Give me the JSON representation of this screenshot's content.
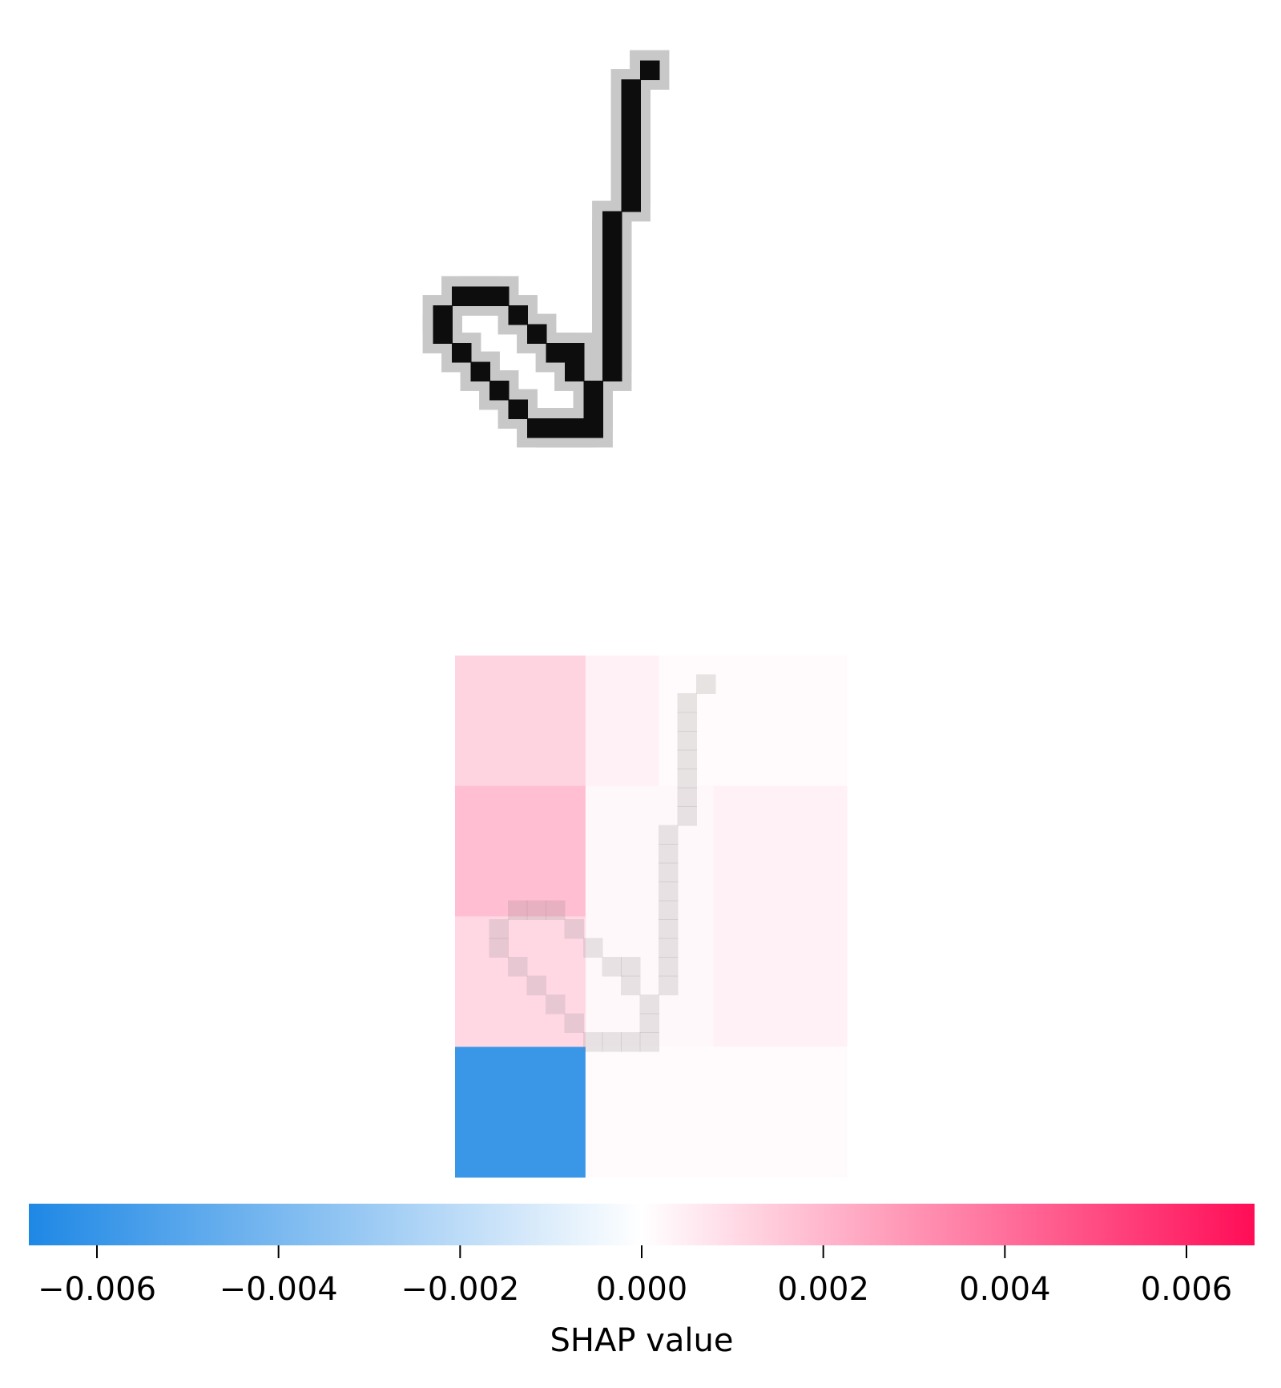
{
  "chart_data": {
    "type": "heatmap",
    "panels": [
      {
        "name": "input-digit",
        "colormap": "gray_r",
        "stroke": [
          [
            14,
            1
          ],
          [
            13,
            2
          ],
          [
            13,
            3
          ],
          [
            13,
            4
          ],
          [
            13,
            5
          ],
          [
            13,
            6
          ],
          [
            13,
            7
          ],
          [
            13,
            8
          ],
          [
            12,
            9
          ],
          [
            12,
            10
          ],
          [
            12,
            11
          ],
          [
            12,
            12
          ],
          [
            12,
            13
          ],
          [
            12,
            14
          ],
          [
            12,
            15
          ],
          [
            12,
            16
          ],
          [
            12,
            17
          ],
          [
            11,
            18
          ],
          [
            11,
            19
          ],
          [
            11,
            20
          ],
          [
            10,
            20
          ],
          [
            9,
            20
          ],
          [
            8,
            20
          ],
          [
            7,
            19
          ],
          [
            6,
            18
          ],
          [
            5,
            17
          ],
          [
            4,
            16
          ],
          [
            3,
            15
          ],
          [
            3,
            14
          ],
          [
            4,
            13
          ],
          [
            5,
            13
          ],
          [
            6,
            13
          ],
          [
            7,
            14
          ],
          [
            8,
            15
          ],
          [
            9,
            16
          ],
          [
            10,
            16
          ],
          [
            10,
            17
          ]
        ]
      },
      {
        "name": "shap-overlay",
        "grid_rows": 4,
        "cells": [
          {
            "row": 0,
            "x0": 0,
            "x1": 0.333,
            "value": 0.0012
          },
          {
            "row": 0,
            "x0": 0.333,
            "x1": 0.52,
            "value": 0.0004
          },
          {
            "row": 0,
            "x0": 0.52,
            "x1": 1.0,
            "value": 0.00015
          },
          {
            "row": 1,
            "x0": 0,
            "x1": 0.333,
            "value": 0.0018
          },
          {
            "row": 1,
            "x0": 0.333,
            "x1": 0.66,
            "value": 0.0002
          },
          {
            "row": 1,
            "x0": 0.66,
            "x1": 1.0,
            "value": 0.0004
          },
          {
            "row": 2,
            "x0": 0,
            "x1": 0.333,
            "value": 0.0011
          },
          {
            "row": 2,
            "x0": 0.333,
            "x1": 0.66,
            "value": 0.0002
          },
          {
            "row": 2,
            "x0": 0.66,
            "x1": 1.0,
            "value": 0.0004
          },
          {
            "row": 3,
            "x0": 0,
            "x1": 0.333,
            "value": -0.0059
          },
          {
            "row": 3,
            "x0": 0.333,
            "x1": 1.0,
            "value": 0.0001
          }
        ]
      }
    ],
    "colorbar": {
      "label": "SHAP value",
      "range": [
        -0.00675,
        0.00675
      ],
      "ticks": [
        -0.006,
        -0.004,
        -0.002,
        0.0,
        0.002,
        0.004,
        0.006
      ],
      "tick_labels": [
        "−0.006",
        "−0.004",
        "−0.002",
        "0.000",
        "0.002",
        "0.004",
        "0.006"
      ],
      "colors": {
        "negative": "#1e88e5",
        "neutral": "#ffffff",
        "positive": "#ff0d57"
      }
    }
  }
}
